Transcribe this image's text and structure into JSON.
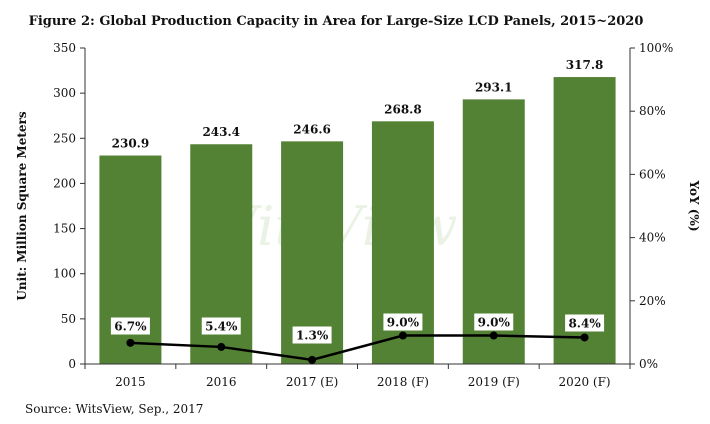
{
  "chart_data": {
    "type": "bar",
    "title": "Figure 2: Global Production Capacity in Area for Large-Size LCD Panels, 2015~2020",
    "categories": [
      "2015",
      "2016",
      "2017 (E)",
      "2018 (F)",
      "2019 (F)",
      "2020 (F)"
    ],
    "series": [
      {
        "kind": "bar",
        "axis": "left",
        "values": [
          230.9,
          243.4,
          246.6,
          268.8,
          293.1,
          317.8
        ],
        "color": "#548235"
      },
      {
        "kind": "line",
        "axis": "right",
        "values": [
          6.7,
          5.4,
          1.3,
          9.0,
          9.0,
          8.4
        ],
        "labels": [
          "6.7%",
          "5.4%",
          "1.3%",
          "9.0%",
          "9.0%",
          "8.4%"
        ],
        "color": "#000000"
      }
    ],
    "ylabel": "Unit: Million Square Meters",
    "y2label": "YoY (%)",
    "ylim": [
      0,
      350
    ],
    "y2lim": [
      0,
      100
    ],
    "yticks": [
      "0",
      "50",
      "100",
      "150",
      "200",
      "250",
      "300",
      "350"
    ],
    "y2ticks": [
      "0%",
      "20%",
      "40%",
      "60%",
      "80%",
      "100%"
    ],
    "grid": false,
    "legend": "none",
    "watermark": "WitsView",
    "source": "Source: WitsView, Sep., 2017"
  }
}
